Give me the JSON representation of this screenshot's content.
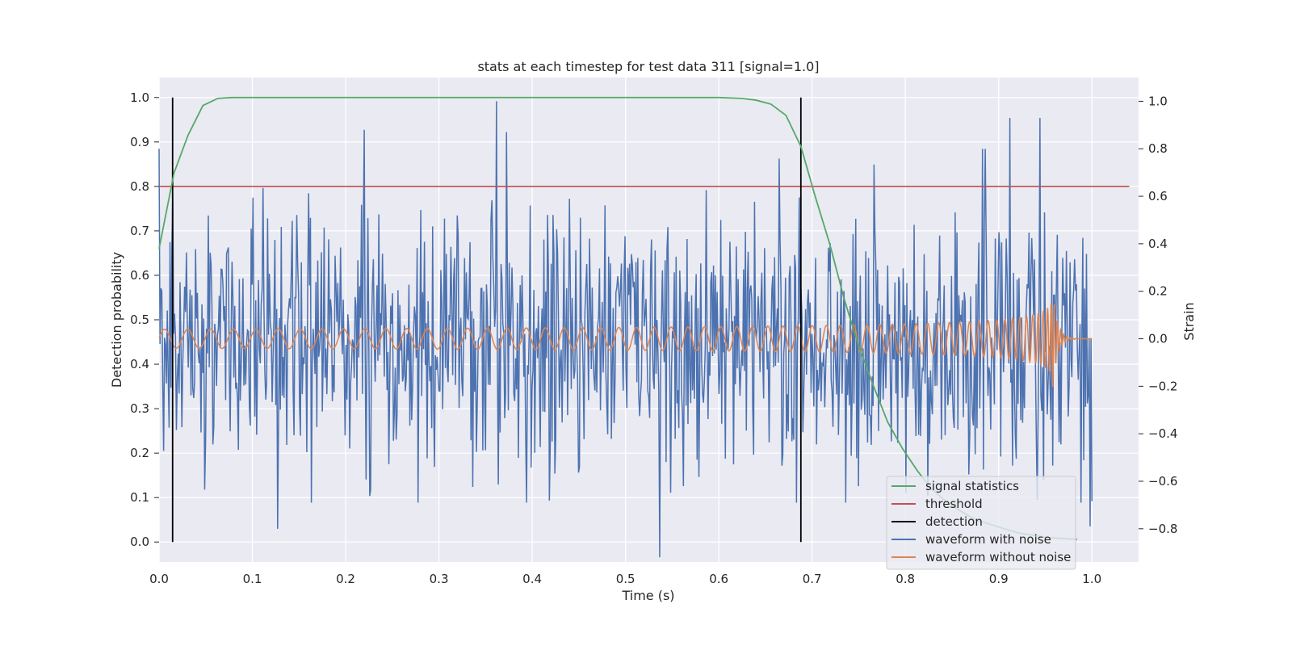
{
  "chart_data": {
    "type": "line",
    "title": "stats at each timestep for test data 311 [signal=1.0]",
    "xlabel": "Time (s)",
    "ylabel_left": "Detection probability",
    "ylabel_right": "Strain",
    "xlim": [
      0.0,
      1.05
    ],
    "ylim_left": [
      -0.045,
      1.045
    ],
    "ylim_right": [
      -0.94,
      1.1
    ],
    "x_ticks": [
      "0.0",
      "0.1",
      "0.2",
      "0.3",
      "0.4",
      "0.5",
      "0.6",
      "0.7",
      "0.8",
      "0.9",
      "1.0"
    ],
    "y_ticks_left": [
      "0.0",
      "0.1",
      "0.2",
      "0.3",
      "0.4",
      "0.5",
      "0.6",
      "0.7",
      "0.8",
      "0.9",
      "1.0"
    ],
    "y_ticks_right": [
      "−0.8",
      "−0.6",
      "−0.4",
      "−0.2",
      "0.0",
      "0.2",
      "0.4",
      "0.6",
      "0.8",
      "1.0"
    ],
    "grid": true,
    "legend_position": "lower-right",
    "colors": {
      "signal_statistics": "#55a868",
      "threshold": "#c44e52",
      "detection": "#000000",
      "waveform_with_noise": "#4c72b0",
      "waveform_without_noise": "#dd8452",
      "plot_background": "#eaeaf2",
      "grid": "#ffffff"
    },
    "series": [
      {
        "name": "signal statistics",
        "axis": "left",
        "x": [
          0.0,
          0.016,
          0.031,
          0.047,
          0.063,
          0.078,
          0.1,
          0.2,
          0.3,
          0.4,
          0.5,
          0.6,
          0.625,
          0.64,
          0.656,
          0.672,
          0.688,
          0.703,
          0.719,
          0.734,
          0.75,
          0.766,
          0.781,
          0.797,
          0.813,
          0.828,
          0.844,
          0.859,
          0.875,
          0.891,
          0.906,
          0.922,
          0.938,
          0.953,
          0.969,
          0.984
        ],
        "y": [
          0.66,
          0.83,
          0.915,
          0.982,
          0.998,
          1.0,
          1.0,
          1.0,
          1.0,
          1.0,
          1.0,
          1.0,
          0.998,
          0.994,
          0.985,
          0.96,
          0.89,
          0.78,
          0.67,
          0.55,
          0.44,
          0.35,
          0.27,
          0.21,
          0.16,
          0.12,
          0.09,
          0.07,
          0.05,
          0.04,
          0.03,
          0.02,
          0.015,
          0.01,
          0.008,
          0.006
        ]
      },
      {
        "name": "threshold",
        "axis": "left",
        "x": [
          0.0,
          1.04
        ],
        "y": [
          0.8,
          0.8
        ]
      },
      {
        "name": "detection",
        "axis": "left",
        "events_x": [
          0.0145,
          0.688
        ],
        "y_range": [
          0.0,
          1.0
        ]
      },
      {
        "name": "waveform with noise",
        "axis": "right",
        "x_range": [
          0.0,
          1.0
        ],
        "n_points": 1024,
        "y_range": [
          -0.92,
          1.0
        ],
        "peaks": [
          {
            "x": 0.362,
            "y": 1.0
          },
          {
            "x": 0.22,
            "y": 0.88
          },
          {
            "x": 0.372,
            "y": 0.87
          },
          {
            "x": 0.944,
            "y": 0.93
          },
          {
            "x": 0.912,
            "y": 0.93
          },
          {
            "x": 0.537,
            "y": -0.92
          },
          {
            "x": 0.127,
            "y": -0.8
          },
          {
            "x": 0.998,
            "y": -0.79
          }
        ]
      },
      {
        "name": "waveform without noise",
        "axis": "right",
        "x_range": [
          0.0,
          1.0
        ],
        "amplitude_start": 0.04,
        "amplitude_peak": 0.25,
        "merger_x": 0.957,
        "cycles_start_per_s": 40
      }
    ],
    "legend": [
      {
        "label": "signal statistics",
        "color": "#55a868"
      },
      {
        "label": "threshold",
        "color": "#c44e52"
      },
      {
        "label": "detection",
        "color": "#000000"
      },
      {
        "label": "waveform with noise",
        "color": "#4c72b0"
      },
      {
        "label": "waveform without noise",
        "color": "#dd8452"
      }
    ]
  }
}
